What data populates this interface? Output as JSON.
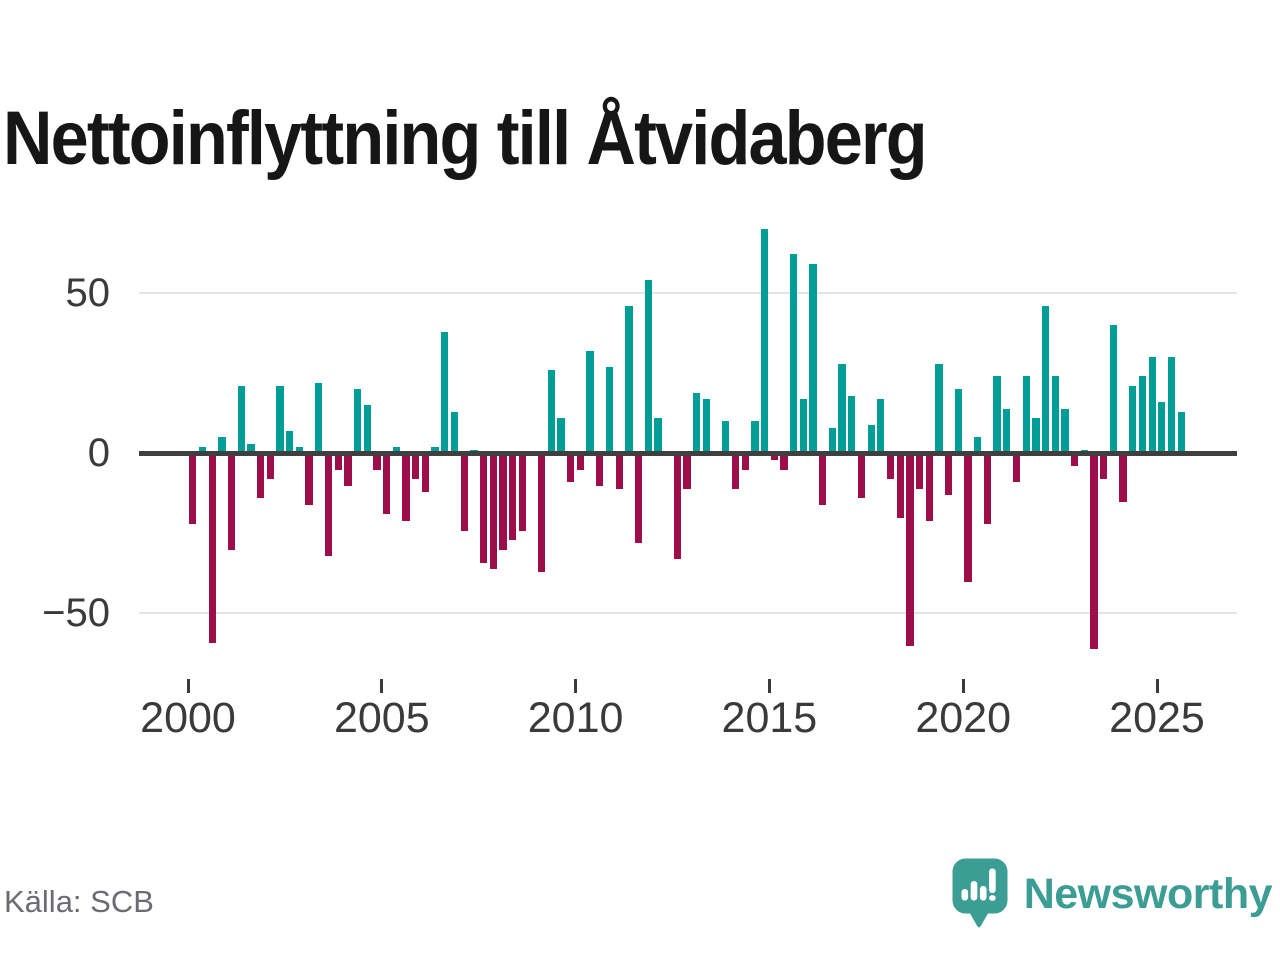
{
  "title": "Nettoinflyttning till Åtvidaberg",
  "source": "Källa: SCB",
  "branding": {
    "name": "Newsworthy",
    "icon": "speech-bubble-bar-chart-exclamation-icon"
  },
  "colors": {
    "positive": "#009E96",
    "negative": "#9C0D49",
    "axis": "#3F3F3F",
    "grid": "#E4E4E4",
    "tick_label": "#3A3A3A",
    "title_text": "#161616",
    "source_text": "#6B6B73",
    "brand_teal": "#3C9D95",
    "background": "#FFFFFF"
  },
  "chart_data": {
    "type": "bar",
    "title": "Nettoinflyttning till Åtvidaberg",
    "xlabel": "",
    "ylabel": "",
    "unit": "personer per kvartal (nettoinflyttning)",
    "ylim": [
      -75,
      78
    ],
    "grid": "horizontal gridlines at 50 and -50, dark zero baseline",
    "legend_position": "none",
    "y_tick_values": [
      50,
      0,
      -50
    ],
    "y_tick_labels": [
      "50",
      "0",
      "−50"
    ],
    "x_tick_labels": [
      "2000",
      "2005",
      "2010",
      "2015",
      "2020",
      "2025"
    ],
    "x_tick_quarter_index": [
      0,
      20,
      40,
      60,
      80,
      100
    ],
    "quarters": [
      "2000Q1",
      "2000Q2",
      "2000Q3",
      "2000Q4",
      "2001Q1",
      "2001Q2",
      "2001Q3",
      "2001Q4",
      "2002Q1",
      "2002Q2",
      "2002Q3",
      "2002Q4",
      "2003Q1",
      "2003Q2",
      "2003Q3",
      "2003Q4",
      "2004Q1",
      "2004Q2",
      "2004Q3",
      "2004Q4",
      "2005Q1",
      "2005Q2",
      "2005Q3",
      "2005Q4",
      "2006Q1",
      "2006Q2",
      "2006Q3",
      "2006Q4",
      "2007Q1",
      "2007Q2",
      "2007Q3",
      "2007Q4",
      "2008Q1",
      "2008Q2",
      "2008Q3",
      "2008Q4",
      "2009Q1",
      "2009Q2",
      "2009Q3",
      "2009Q4",
      "2010Q1",
      "2010Q2",
      "2010Q3",
      "2010Q4",
      "2011Q1",
      "2011Q2",
      "2011Q3",
      "2011Q4",
      "2012Q1",
      "2012Q2",
      "2012Q3",
      "2012Q4",
      "2013Q1",
      "2013Q2",
      "2013Q3",
      "2013Q4",
      "2014Q1",
      "2014Q2",
      "2014Q3",
      "2014Q4",
      "2015Q1",
      "2015Q2",
      "2015Q3",
      "2015Q4",
      "2016Q1",
      "2016Q2",
      "2016Q3",
      "2016Q4",
      "2017Q1",
      "2017Q2",
      "2017Q3",
      "2017Q4",
      "2018Q1",
      "2018Q2",
      "2018Q3",
      "2018Q4",
      "2019Q1",
      "2019Q2",
      "2019Q3",
      "2019Q4",
      "2020Q1",
      "2020Q2",
      "2020Q3",
      "2020Q4",
      "2021Q1",
      "2021Q2",
      "2021Q3",
      "2021Q4",
      "2022Q1",
      "2022Q2",
      "2022Q3",
      "2022Q4",
      "2023Q1",
      "2023Q2",
      "2023Q3",
      "2023Q4",
      "2024Q1",
      "2024Q2",
      "2024Q3",
      "2024Q4",
      "2025Q1",
      "2025Q2",
      "2025Q3"
    ],
    "values": [
      -22,
      2,
      -59,
      5,
      -30,
      21,
      3,
      -14,
      -8,
      21,
      7,
      2,
      -16,
      22,
      -32,
      -5,
      -10,
      20,
      15,
      -5,
      -19,
      2,
      -21,
      -8,
      -12,
      2,
      38,
      13,
      -24,
      1,
      -34,
      -36,
      -30,
      -27,
      -24,
      0,
      -37,
      26,
      11,
      -9,
      -5,
      32,
      -10,
      27,
      -11,
      46,
      -28,
      54,
      11,
      0,
      -33,
      -11,
      19,
      17,
      0,
      10,
      -11,
      -5,
      10,
      70,
      -2,
      -5,
      62,
      17,
      59,
      -16,
      8,
      28,
      18,
      -14,
      9,
      17,
      -8,
      -20,
      -60,
      -11,
      -21,
      28,
      -13,
      20,
      -40,
      5,
      -22,
      24,
      14,
      -9,
      24,
      11,
      46,
      24,
      14,
      -4,
      1,
      -61,
      -8,
      40,
      -15,
      21,
      24,
      30,
      16,
      30,
      13
    ]
  }
}
